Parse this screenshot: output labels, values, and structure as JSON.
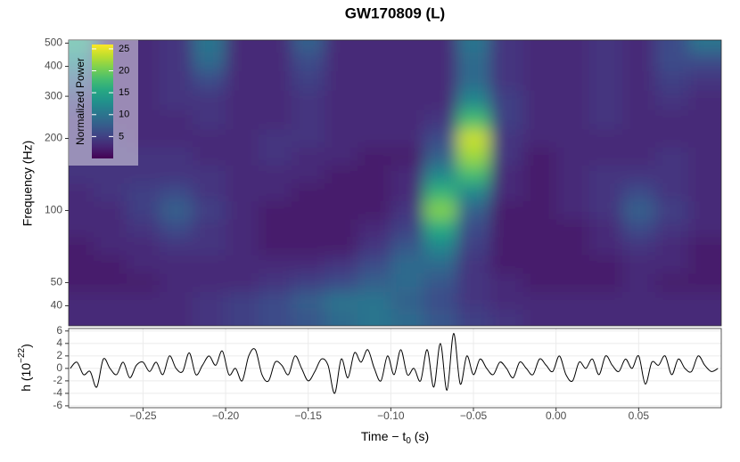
{
  "chart_data": [
    {
      "type": "heatmap",
      "title": "GW170809 (L)",
      "ylabel": "Frequency (Hz)",
      "x": [
        -0.29,
        -0.27,
        -0.25,
        -0.23,
        -0.21,
        -0.19,
        -0.17,
        -0.15,
        -0.13,
        -0.11,
        -0.09,
        -0.07,
        -0.05,
        -0.03,
        -0.01,
        0.01,
        0.03,
        0.05,
        0.07,
        0.09
      ],
      "y": [
        36,
        42,
        50,
        60,
        71,
        85,
        100,
        120,
        141,
        170,
        200,
        240,
        290,
        350,
        420,
        500
      ],
      "z": [
        [
          3,
          3,
          3,
          3,
          4,
          5,
          6,
          7,
          9,
          10,
          9,
          7,
          5,
          4,
          3,
          3,
          3,
          3,
          3,
          3
        ],
        [
          3,
          3,
          3,
          3,
          4,
          5,
          6,
          8,
          10,
          10,
          8,
          6,
          4,
          3,
          3,
          3,
          3,
          3,
          3,
          3
        ],
        [
          2,
          2,
          2,
          3,
          3,
          3,
          4,
          5,
          6,
          8,
          9,
          7,
          4,
          3,
          2,
          2,
          2,
          3,
          2,
          2
        ],
        [
          2,
          2,
          3,
          3,
          3,
          3,
          3,
          3,
          4,
          6,
          9,
          9,
          4,
          2,
          2,
          2,
          2,
          3,
          3,
          2
        ],
        [
          2,
          3,
          3,
          4,
          4,
          3,
          2,
          2,
          2,
          4,
          7,
          12,
          5,
          2,
          2,
          2,
          3,
          4,
          3,
          2
        ],
        [
          3,
          3,
          4,
          6,
          4,
          3,
          2,
          2,
          2,
          3,
          5,
          16,
          6,
          2,
          2,
          2,
          3,
          6,
          4,
          3
        ],
        [
          3,
          3,
          5,
          8,
          5,
          3,
          2,
          2,
          2,
          2,
          4,
          21,
          8,
          2,
          2,
          3,
          4,
          8,
          5,
          3
        ],
        [
          3,
          4,
          5,
          6,
          4,
          3,
          3,
          2,
          2,
          2,
          3,
          17,
          12,
          3,
          2,
          3,
          4,
          6,
          4,
          3
        ],
        [
          4,
          4,
          4,
          4,
          4,
          3,
          3,
          3,
          2,
          2,
          3,
          12,
          18,
          3,
          2,
          3,
          4,
          4,
          4,
          3
        ],
        [
          4,
          4,
          4,
          4,
          3,
          3,
          4,
          3,
          3,
          2,
          2,
          8,
          22,
          4,
          2,
          3,
          3,
          3,
          4,
          3
        ],
        [
          4,
          4,
          3,
          3,
          3,
          3,
          4,
          4,
          3,
          3,
          3,
          6,
          24,
          4,
          3,
          3,
          3,
          3,
          3,
          3
        ],
        [
          4,
          3,
          3,
          3,
          4,
          3,
          3,
          4,
          3,
          3,
          3,
          4,
          18,
          5,
          3,
          3,
          4,
          3,
          3,
          3
        ],
        [
          5,
          3,
          3,
          4,
          4,
          3,
          3,
          4,
          3,
          3,
          3,
          3,
          12,
          5,
          3,
          3,
          4,
          3,
          4,
          3
        ],
        [
          8,
          3,
          3,
          4,
          6,
          3,
          3,
          5,
          3,
          3,
          3,
          3,
          9,
          4,
          3,
          3,
          4,
          3,
          5,
          4
        ],
        [
          12,
          3,
          3,
          4,
          9,
          3,
          3,
          6,
          3,
          3,
          3,
          3,
          9,
          4,
          3,
          3,
          4,
          3,
          6,
          6
        ],
        [
          15,
          3,
          3,
          4,
          10,
          3,
          3,
          8,
          3,
          3,
          3,
          3,
          10,
          4,
          3,
          3,
          4,
          3,
          6,
          10
        ]
      ],
      "xlim": [
        -0.295,
        0.1
      ],
      "ylim": [
        33,
        515
      ],
      "log_y": true,
      "yticks": [
        40,
        50,
        100,
        200,
        300,
        400,
        500
      ],
      "colormap": "viridis",
      "zlim": [
        0,
        26
      ],
      "colorbar": {
        "title": "Normalized Power",
        "ticks": [
          5,
          10,
          15,
          20,
          25
        ]
      }
    },
    {
      "type": "line",
      "xlabel": [
        "Time − t",
        "0",
        " (s)"
      ],
      "ylabel": [
        "h (10",
        "−22",
        ")"
      ],
      "x": [
        -0.294,
        -0.29,
        -0.286,
        -0.282,
        -0.278,
        -0.274,
        -0.27,
        -0.266,
        -0.262,
        -0.258,
        -0.254,
        -0.25,
        -0.246,
        -0.242,
        -0.238,
        -0.234,
        -0.23,
        -0.226,
        -0.222,
        -0.218,
        -0.214,
        -0.21,
        -0.206,
        -0.202,
        -0.198,
        -0.194,
        -0.19,
        -0.186,
        -0.182,
        -0.178,
        -0.174,
        -0.17,
        -0.166,
        -0.162,
        -0.158,
        -0.154,
        -0.15,
        -0.146,
        -0.142,
        -0.138,
        -0.134,
        -0.13,
        -0.126,
        -0.122,
        -0.118,
        -0.114,
        -0.11,
        -0.106,
        -0.102,
        -0.098,
        -0.094,
        -0.09,
        -0.086,
        -0.082,
        -0.078,
        -0.074,
        -0.07,
        -0.066,
        -0.062,
        -0.058,
        -0.054,
        -0.05,
        -0.046,
        -0.042,
        -0.038,
        -0.034,
        -0.03,
        -0.026,
        -0.022,
        -0.018,
        -0.014,
        -0.01,
        -0.006,
        -0.002,
        0.002,
        0.006,
        0.01,
        0.014,
        0.018,
        0.022,
        0.026,
        0.03,
        0.034,
        0.038,
        0.042,
        0.046,
        0.05,
        0.054,
        0.058,
        0.062,
        0.066,
        0.07,
        0.074,
        0.078,
        0.082,
        0.086,
        0.09,
        0.094,
        0.098
      ],
      "series": [
        {
          "color": "#000000",
          "values": [
            0,
            1,
            -1,
            -0.5,
            -3,
            1.5,
            0,
            -1,
            1,
            -1.5,
            0.5,
            1,
            -0.5,
            1,
            -1,
            2,
            0,
            -0.5,
            2.5,
            -1,
            0.5,
            2,
            0.5,
            2.8,
            -1,
            0,
            -2,
            2,
            3,
            -1,
            -2,
            1,
            0.5,
            -1,
            2,
            0,
            -2,
            -0.5,
            1.5,
            0.5,
            -4,
            1.5,
            -1.5,
            2.5,
            1,
            3,
            0,
            -2,
            2,
            -1,
            3,
            -1,
            0,
            -2,
            3,
            -3,
            4,
            -3.5,
            5.6,
            -2.5,
            2,
            -1,
            1.5,
            0,
            -1,
            1,
            0,
            -1.5,
            1,
            0,
            -1,
            1.5,
            0.5,
            -0.5,
            2,
            -1,
            -2,
            1,
            0,
            1.5,
            -1,
            2,
            0.5,
            -0.5,
            1.5,
            0,
            2,
            -2.5,
            1,
            0.5,
            2,
            -1,
            1.5,
            0,
            -0.5,
            2,
            0.5,
            -0.5,
            0
          ]
        }
      ],
      "xlim": [
        -0.295,
        0.1
      ],
      "ylim": [
        -6.3,
        6.4
      ],
      "xticks": [
        {
          "value": -0.25,
          "label": "−0.25"
        },
        {
          "value": -0.2,
          "label": "−0.20"
        },
        {
          "value": -0.15,
          "label": "−0.15"
        },
        {
          "value": -0.1,
          "label": "−0.10"
        },
        {
          "value": -0.05,
          "label": "−0.05"
        },
        {
          "value": 0,
          "label": "0.00"
        },
        {
          "value": 0.05,
          "label": "0.05"
        }
      ],
      "yticks": [
        -6,
        -4,
        -2,
        0,
        2,
        4,
        6
      ],
      "grid": true
    }
  ]
}
